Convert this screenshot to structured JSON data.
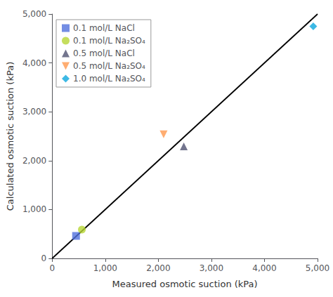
{
  "chart_data": {
    "type": "scatter",
    "xlabel": "Measured osmotic suction (kPa)",
    "ylabel": "Calculated osmotic suction (kPa)",
    "xlim": [
      0,
      5000
    ],
    "ylim": [
      0,
      5000
    ],
    "xticks": [
      0,
      1000,
      2000,
      3000,
      4000,
      5000
    ],
    "yticks": [
      0,
      1000,
      2000,
      3000,
      4000,
      5000
    ],
    "grid": false,
    "legend": "upper left",
    "series": [
      {
        "type": "line",
        "color": "#000000",
        "line_style": "solid",
        "x": [
          0,
          5000
        ],
        "values": [
          0,
          5000
        ]
      },
      {
        "name": "0.1 mol/L NaCl",
        "marker": "square",
        "x": [
          450
        ],
        "values": [
          460
        ]
      },
      {
        "name": "0.1 mol/L Na₂SO₄",
        "marker": "circle",
        "x": [
          560
        ],
        "values": [
          590
        ]
      },
      {
        "name": "0.5 mol/L NaCl",
        "marker": "triangle-up",
        "x": [
          2480
        ],
        "values": [
          2290
        ]
      },
      {
        "name": "0.5 mol/L Na₂SO₄",
        "marker": "triangle-down",
        "x": [
          2100
        ],
        "values": [
          2540
        ]
      },
      {
        "name": "1.0 mol/L Na₂SO₄",
        "marker": "diamond",
        "x": [
          4920
        ],
        "values": [
          4750
        ]
      }
    ]
  }
}
